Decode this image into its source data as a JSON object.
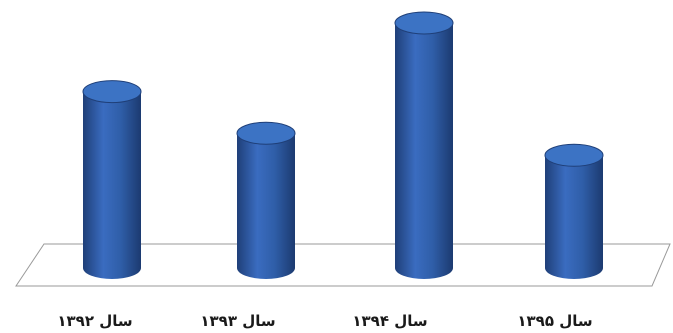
{
  "chart_data": {
    "type": "bar",
    "categories": [
      "سال ۱۳۹۲",
      "سال ۱۳۹۳",
      "سال ۱۳۹۴",
      "سال ۱۳۹۵"
    ],
    "values": [
      72,
      55,
      100,
      46
    ],
    "ylim": [
      0,
      100
    ],
    "grid": false,
    "legend": "none",
    "bar_shape": "cylinder-3d",
    "colors": {
      "bar_fill": "#2f5ea8",
      "bar_top": "#3c73c4",
      "bar_shadow": "#1f3f78",
      "floor_line": "#9a9a9a"
    }
  }
}
